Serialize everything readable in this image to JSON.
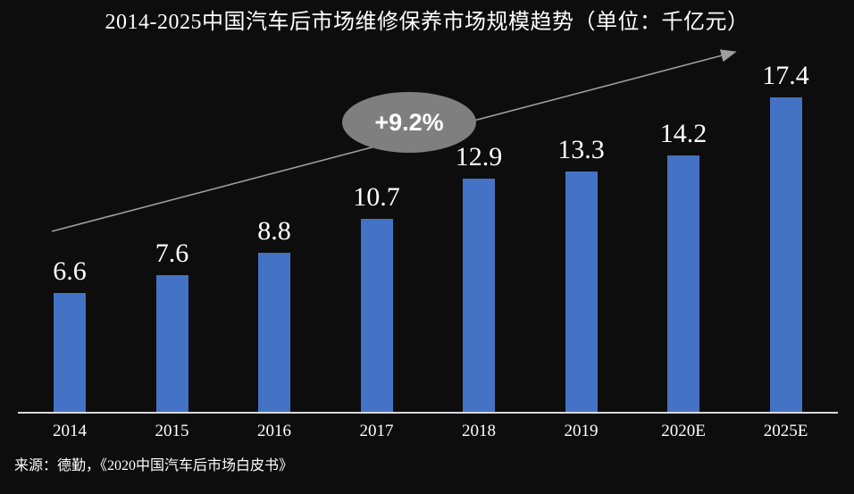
{
  "title": "2014-2025中国汽车后市场维修保养市场规模趋势（单位：千亿元）",
  "annotation": {
    "growth_label": "+9.2%"
  },
  "source": "来源：德勤，《2020中国汽车后市场白皮书》",
  "colors": {
    "background": "#0d0d0d",
    "bar": "#4472C4",
    "ellipse": "#7f7f7f",
    "arrow": "#9e9e9e",
    "axis": "#d9d9d9",
    "text": "#ffffff"
  },
  "chart_data": {
    "type": "bar",
    "title": "2014-2025中国汽车后市场维修保养市场规模趋势（单位：千亿元）",
    "unit": "千亿元",
    "categories": [
      "2014",
      "2015",
      "2016",
      "2017",
      "2018",
      "2019",
      "2020E",
      "2025E"
    ],
    "values": [
      6.6,
      7.6,
      8.8,
      10.7,
      12.9,
      13.3,
      14.2,
      17.4
    ],
    "annotation": "+9.2%",
    "annotation_meaning": "CAGR trend arrow label",
    "ylim": [
      0,
      18
    ],
    "grid": false,
    "legend": "none",
    "data_labels": true,
    "xlabel": "",
    "ylabel": ""
  }
}
